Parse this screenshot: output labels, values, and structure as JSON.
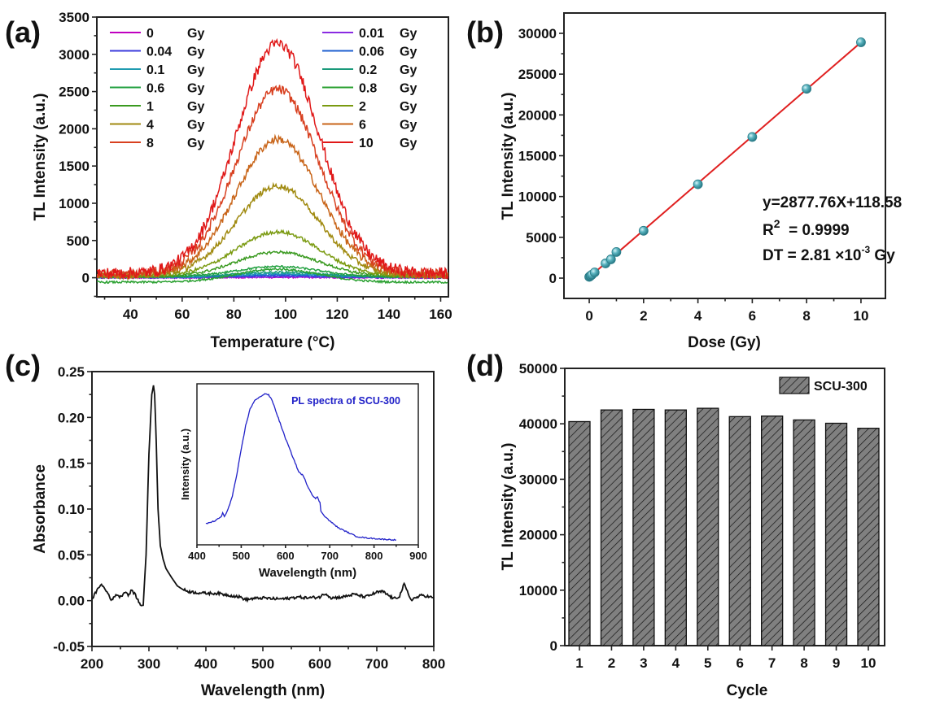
{
  "chart_data": [
    {
      "panel": "(a)",
      "type": "line",
      "title": "",
      "xlabel": "Temperature (°C)",
      "ylabel": "TL Intensity (a.u.)",
      "xlim": [
        27,
        163
      ],
      "ylim": [
        -256,
        3500
      ],
      "xticks": [
        40,
        60,
        80,
        100,
        120,
        140,
        160
      ],
      "yticks": [
        0,
        500,
        1000,
        1500,
        2000,
        2500,
        3000,
        3500
      ],
      "legend": "top (two columns)",
      "peak_center": 97,
      "peak_width": 16,
      "series": [
        {
          "name": "0",
          "unit": "Gy",
          "color": "#c000c0",
          "peak": 5,
          "baseline": 0
        },
        {
          "name": "0.01",
          "unit": "Gy",
          "color": "#8a2be2",
          "peak": 8,
          "baseline": 2
        },
        {
          "name": "0.04",
          "unit": "Gy",
          "color": "#3b3bdc",
          "peak": 20,
          "baseline": 5
        },
        {
          "name": "0.06",
          "unit": "Gy",
          "color": "#1f5fd0",
          "peak": 30,
          "baseline": 8
        },
        {
          "name": "0.1",
          "unit": "Gy",
          "color": "#1f9bb0",
          "peak": 45,
          "baseline": 10
        },
        {
          "name": "0.2",
          "unit": "Gy",
          "color": "#1a9a7a",
          "peak": 60,
          "baseline": 15
        },
        {
          "name": "0.6",
          "unit": "Gy",
          "color": "#22a040",
          "peak": 140,
          "baseline": 10
        },
        {
          "name": "0.8",
          "unit": "Gy",
          "color": "#2aa030",
          "peak": 175,
          "baseline": -60
        },
        {
          "name": "1",
          "unit": "Gy",
          "color": "#3a9a20",
          "peak": 330,
          "baseline": 15
        },
        {
          "name": "2",
          "unit": "Gy",
          "color": "#7a9a10",
          "peak": 590,
          "baseline": 25
        },
        {
          "name": "4",
          "unit": "Gy",
          "color": "#a08a10",
          "peak": 1200,
          "baseline": 30
        },
        {
          "name": "6",
          "unit": "Gy",
          "color": "#c86418",
          "peak": 1820,
          "baseline": 40
        },
        {
          "name": "8",
          "unit": "Gy",
          "color": "#d84020",
          "peak": 2480,
          "baseline": 50
        },
        {
          "name": "10",
          "unit": "Gy",
          "color": "#e01818",
          "peak": 3080,
          "baseline": 60
        }
      ]
    },
    {
      "panel": "(b)",
      "type": "scatter",
      "xlabel": "Dose (Gy)",
      "ylabel": "TL Intensity (a.u.)",
      "xlim": [
        -0.93,
        10.9
      ],
      "ylim": [
        -2490,
        32490
      ],
      "xticks": [
        0,
        2,
        4,
        6,
        8,
        10
      ],
      "yticks": [
        0,
        5000,
        10000,
        15000,
        20000,
        25000,
        30000
      ],
      "points": [
        {
          "x": 0,
          "y": 150
        },
        {
          "x": 0.01,
          "y": 180
        },
        {
          "x": 0.04,
          "y": 250
        },
        {
          "x": 0.06,
          "y": 320
        },
        {
          "x": 0.1,
          "y": 420
        },
        {
          "x": 0.2,
          "y": 700
        },
        {
          "x": 0.6,
          "y": 1800
        },
        {
          "x": 0.8,
          "y": 2300
        },
        {
          "x": 1,
          "y": 3200
        },
        {
          "x": 2,
          "y": 5800
        },
        {
          "x": 4,
          "y": 11500
        },
        {
          "x": 6,
          "y": 17300
        },
        {
          "x": 8,
          "y": 23200
        },
        {
          "x": 10,
          "y": 28900
        }
      ],
      "fit": {
        "slope": 2877.76,
        "intercept": 118.58,
        "x_range": [
          0,
          10
        ],
        "color": "#e02020"
      },
      "marker_color": "#3a9aa8",
      "annotations": {
        "equation": "y=2877.76X+118.58",
        "r2_prefix": "R",
        "r2_sup": "2",
        "r2_value": "  = 0.9999",
        "dt_prefix": "DT = 2.81 ×10",
        "dt_sup": "-3",
        "dt_suffix": " Gy"
      }
    },
    {
      "panel": "(c)",
      "type": "line",
      "xlabel": "Wavelength (nm)",
      "ylabel": "Absorbance",
      "xlim": [
        200,
        800
      ],
      "ylim": [
        -0.05,
        0.25
      ],
      "xticks": [
        200,
        300,
        400,
        500,
        600,
        700,
        800
      ],
      "yticks": [
        -0.05,
        0.0,
        0.05,
        0.1,
        0.15,
        0.2,
        0.25
      ],
      "ytick_labels": [
        "-0.05",
        "0.00",
        "0.05",
        "0.10",
        "0.15",
        "0.20",
        "0.25"
      ],
      "series": [
        {
          "name": "Absorbance",
          "color": "#111111",
          "x": [
            200,
            210,
            215,
            220,
            228,
            235,
            242,
            250,
            258,
            265,
            270,
            278,
            285,
            290,
            295,
            300,
            305,
            308,
            310,
            313,
            316,
            320,
            325,
            330,
            340,
            350,
            360,
            370,
            380,
            400,
            420,
            440,
            460,
            470,
            480,
            500,
            520,
            540,
            560,
            580,
            600,
            610,
            620,
            640,
            660,
            680,
            700,
            710,
            720,
            730,
            740,
            748,
            752,
            760,
            780,
            800
          ],
          "y": [
            0.002,
            0.012,
            0.018,
            0.015,
            0.008,
            0.0,
            0.007,
            0.004,
            0.01,
            0.006,
            0.012,
            0.004,
            -0.005,
            -0.004,
            0.05,
            0.16,
            0.225,
            0.235,
            0.225,
            0.17,
            0.1,
            0.06,
            0.045,
            0.035,
            0.025,
            0.016,
            0.012,
            0.01,
            0.009,
            0.008,
            0.008,
            0.006,
            0.004,
            0.001,
            0.002,
            0.003,
            0.002,
            0.002,
            0.004,
            0.003,
            0.004,
            0.008,
            0.003,
            0.004,
            0.007,
            0.004,
            0.009,
            0.01,
            0.006,
            0.002,
            0.005,
            0.018,
            0.012,
            0.001,
            0.006,
            0.003
          ]
        }
      ],
      "inset": {
        "type": "line",
        "title": "PL spectra of SCU-300",
        "xlabel": "Wavelength (nm)",
        "ylabel": "Intensity (a.u.)",
        "xlim": [
          400,
          900
        ],
        "xticks": [
          400,
          500,
          600,
          700,
          800,
          900
        ],
        "ylim": [
          0,
          1.15
        ],
        "color": "#2020c8",
        "x": [
          420,
          440,
          455,
          458,
          462,
          470,
          480,
          490,
          500,
          510,
          520,
          530,
          540,
          548,
          555,
          562,
          570,
          580,
          590,
          600,
          610,
          620,
          630,
          638,
          642,
          650,
          660,
          668,
          672,
          678,
          680,
          690,
          700,
          720,
          740,
          760,
          780,
          800,
          820,
          850
        ],
        "y": [
          0.15,
          0.17,
          0.2,
          0.23,
          0.2,
          0.25,
          0.35,
          0.5,
          0.68,
          0.85,
          0.97,
          1.03,
          1.05,
          1.07,
          1.08,
          1.07,
          1.03,
          0.94,
          0.85,
          0.76,
          0.68,
          0.6,
          0.52,
          0.5,
          0.48,
          0.42,
          0.36,
          0.33,
          0.34,
          0.3,
          0.24,
          0.2,
          0.17,
          0.12,
          0.09,
          0.06,
          0.05,
          0.045,
          0.04,
          0.035
        ]
      }
    },
    {
      "panel": "(d)",
      "type": "bar",
      "xlabel": "Cycle",
      "ylabel": "TL Intensity (a.u.)",
      "ylim": [
        0,
        50000
      ],
      "yticks": [
        0,
        10000,
        20000,
        30000,
        40000,
        50000
      ],
      "categories": [
        "1",
        "2",
        "3",
        "4",
        "5",
        "6",
        "7",
        "8",
        "9",
        "10"
      ],
      "series": [
        {
          "name": "SCU-300",
          "values": [
            40400,
            42500,
            42600,
            42500,
            42800,
            41300,
            41400,
            40700,
            40100,
            39200
          ],
          "color": "#808080",
          "hatch": "diagonal"
        }
      ],
      "legend": "top-right"
    }
  ],
  "panel_labels": [
    "(a)",
    "(b)",
    "(c)",
    "(d)"
  ]
}
